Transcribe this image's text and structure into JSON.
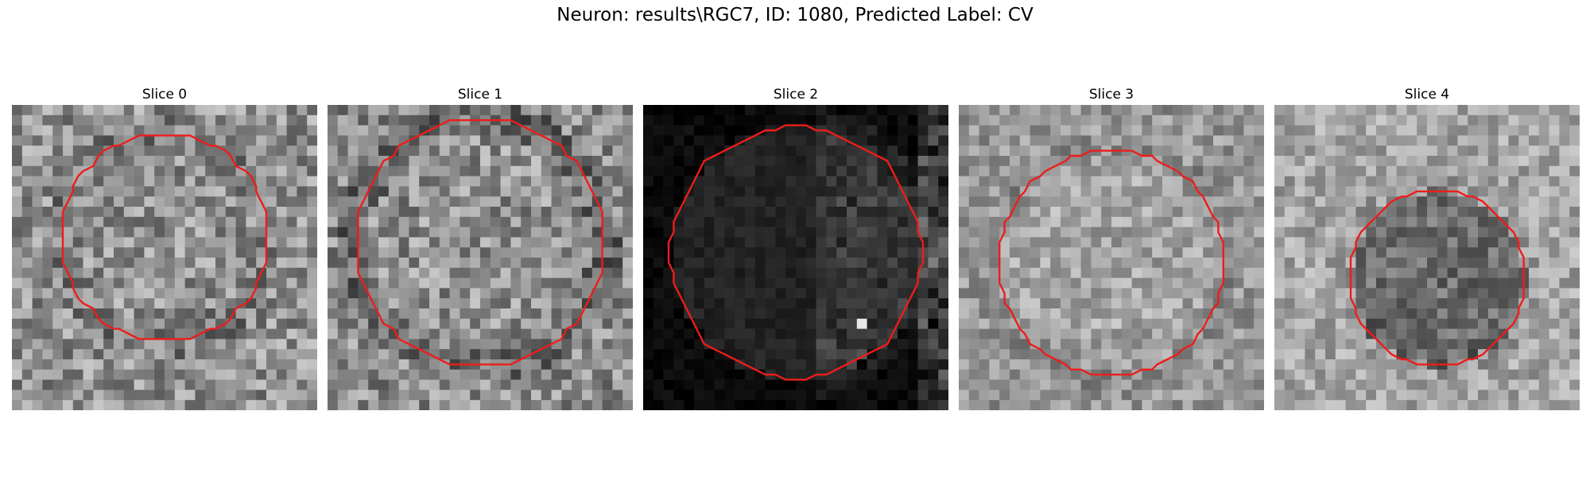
{
  "figure": {
    "suptitle": "Neuron: results\\RGC7, ID: 1080, Predicted Label: CV"
  },
  "colors": {
    "contour": "#ee1c1c",
    "background": "#ffffff"
  },
  "panels": [
    {
      "title": "Slice 0"
    },
    {
      "title": "Slice 1"
    },
    {
      "title": "Slice 2"
    },
    {
      "title": "Slice 3"
    },
    {
      "title": "Slice 4"
    }
  ]
}
